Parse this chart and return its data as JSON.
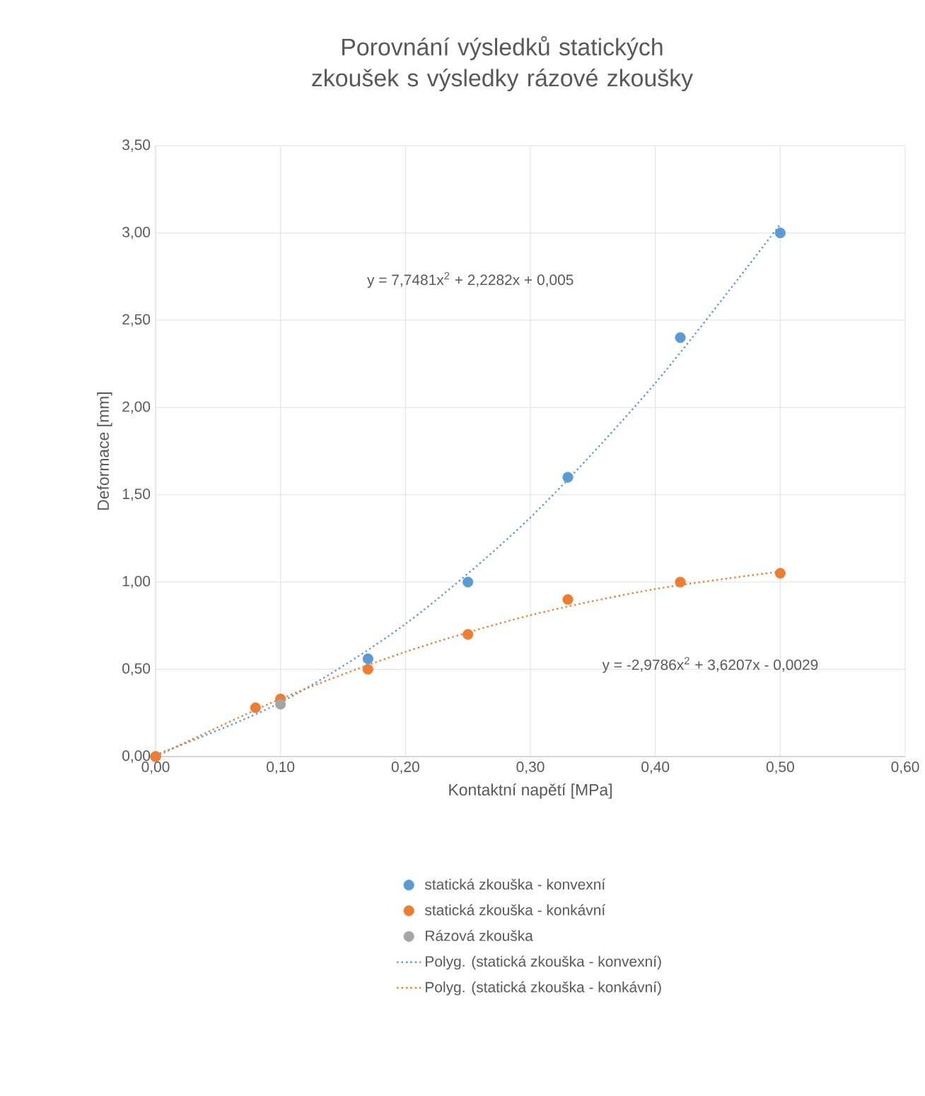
{
  "chart_data": {
    "type": "scatter",
    "title": "Porovnání výsledků statických zkoušek s výsledky rázové zkoušky",
    "xlabel": "Kontaktní napětí [MPa]",
    "ylabel": "Deformace [mm]",
    "xlim": [
      0,
      0.6
    ],
    "ylim": [
      0,
      3.5
    ],
    "xticks": [
      {
        "value": 0,
        "label": "0,00"
      },
      {
        "value": 0.1,
        "label": "0,10"
      },
      {
        "value": 0.2,
        "label": "0,20"
      },
      {
        "value": 0.3,
        "label": "0,30"
      },
      {
        "value": 0.4,
        "label": "0,40"
      },
      {
        "value": 0.5,
        "label": "0,50"
      },
      {
        "value": 0.6,
        "label": "0,60"
      }
    ],
    "yticks": [
      {
        "value": 0,
        "label": "0,00"
      },
      {
        "value": 0.5,
        "label": "0,50"
      },
      {
        "value": 1,
        "label": "1,00"
      },
      {
        "value": 1.5,
        "label": "1,50"
      },
      {
        "value": 2,
        "label": "2,00"
      },
      {
        "value": 2.5,
        "label": "2,50"
      },
      {
        "value": 3,
        "label": "3,00"
      },
      {
        "value": 3.5,
        "label": "3,50"
      }
    ],
    "grid": true,
    "legend": "bottom",
    "marker": "circle",
    "series": [
      {
        "name": "statická zkouška - konvexní",
        "color": "#5b9bd5",
        "x": [
          0,
          0.17,
          0.25,
          0.33,
          0.42,
          0.5
        ],
        "values": [
          0,
          0.56,
          1.0,
          1.6,
          2.4,
          3.0
        ]
      },
      {
        "name": "statická zkouška - konkávní",
        "color": "#ed7d31",
        "x": [
          0,
          0.08,
          0.1,
          0.17,
          0.25,
          0.33,
          0.42,
          0.5
        ],
        "values": [
          0,
          0.28,
          0.33,
          0.5,
          0.7,
          0.9,
          1.0,
          1.05
        ]
      },
      {
        "name": "Rázová zkouška",
        "color": "#a5a5a5",
        "x": [
          0.1
        ],
        "values": [
          0.3
        ]
      },
      {
        "name": "Polyg. (statická zkouška - konvexní)",
        "type": "line",
        "marker": "none",
        "line_style": "dotted",
        "color": "#5b9bd5",
        "x": [
          0,
          0.1,
          0.2,
          0.3,
          0.4,
          0.5
        ],
        "values": [
          0.01,
          0.31,
          0.76,
          1.37,
          2.14,
          3.05
        ]
      },
      {
        "name": "Polyg. (statická zkouška - konkávní)",
        "type": "line",
        "marker": "none",
        "line_style": "dotted",
        "color": "#ed7d31",
        "x": [
          0,
          0.1,
          0.2,
          0.3,
          0.4,
          0.5
        ],
        "values": [
          0,
          0.33,
          0.6,
          0.81,
          0.96,
          1.06
        ]
      }
    ],
    "annotations": [
      "y = 7,7481x$^{2}$ + 2,2282x + 0,005",
      "y = -2,9786x$^{2}$ + 3,6207x - 0,0029"
    ]
  }
}
